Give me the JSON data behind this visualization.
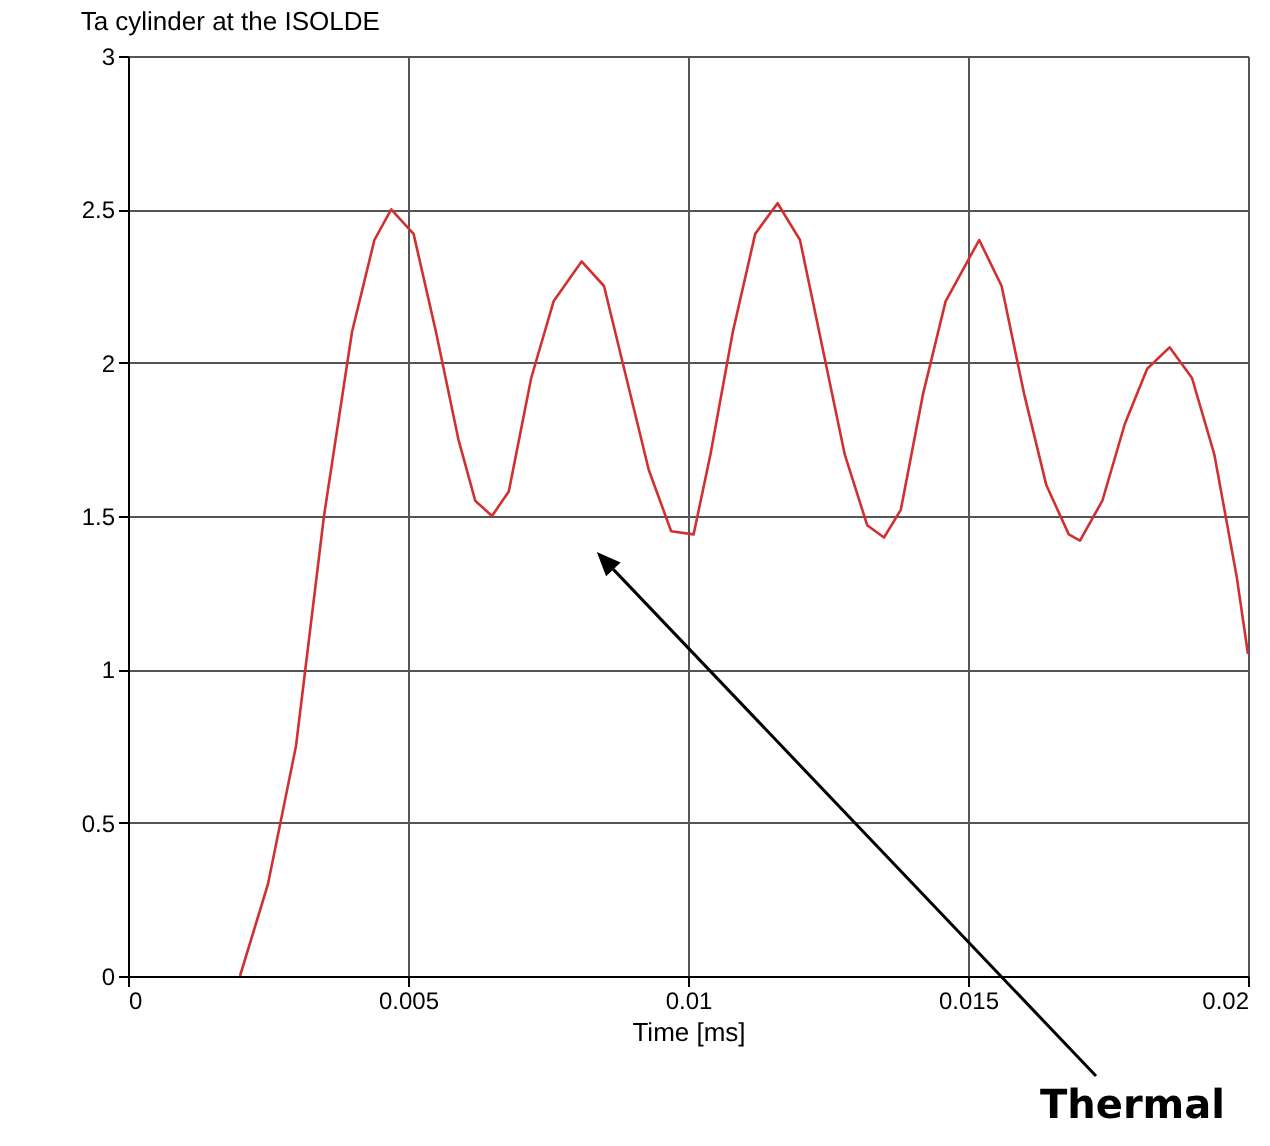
{
  "chart_data": {
    "type": "line",
    "title": "Ta cylinder at the ISOLDE",
    "xlabel": "Time [ms]",
    "x": [
      0.002,
      0.0025,
      0.003,
      0.0035,
      0.004,
      0.0044,
      0.0047,
      0.0051,
      0.0055,
      0.0059,
      0.0062,
      0.0065,
      0.0068,
      0.0072,
      0.0076,
      0.0081,
      0.0085,
      0.0089,
      0.0093,
      0.0097,
      0.0101,
      0.0104,
      0.0108,
      0.0112,
      0.0116,
      0.012,
      0.0124,
      0.0128,
      0.0132,
      0.0135,
      0.0138,
      0.0142,
      0.0146,
      0.0152,
      0.0156,
      0.016,
      0.0164,
      0.0168,
      0.017,
      0.0174,
      0.0178,
      0.0182,
      0.0186,
      0.019,
      0.0194,
      0.0198,
      0.02
    ],
    "series": [
      {
        "color": "#d03030",
        "values": [
          0,
          0.3,
          0.75,
          1.5,
          2.1,
          2.4,
          2.5,
          2.42,
          2.1,
          1.75,
          1.55,
          1.5,
          1.58,
          1.95,
          2.2,
          2.33,
          2.25,
          1.95,
          1.65,
          1.45,
          1.44,
          1.7,
          2.1,
          2.42,
          2.52,
          2.4,
          2.05,
          1.7,
          1.47,
          1.43,
          1.52,
          1.9,
          2.2,
          2.4,
          2.25,
          1.9,
          1.6,
          1.44,
          1.42,
          1.55,
          1.8,
          1.98,
          2.05,
          1.95,
          1.7,
          1.3,
          1.05
        ]
      }
    ],
    "xlim": [
      0,
      0.02
    ],
    "xticks": [
      0,
      0.005,
      0.01,
      0.015,
      0.02
    ],
    "ylim": [
      0,
      3
    ],
    "yticks": [
      0,
      0.5,
      1,
      1.5,
      2,
      2.5,
      3
    ],
    "grid": true,
    "marker": "none",
    "line_style": "solid",
    "annotations": [
      "Thermal"
    ]
  }
}
